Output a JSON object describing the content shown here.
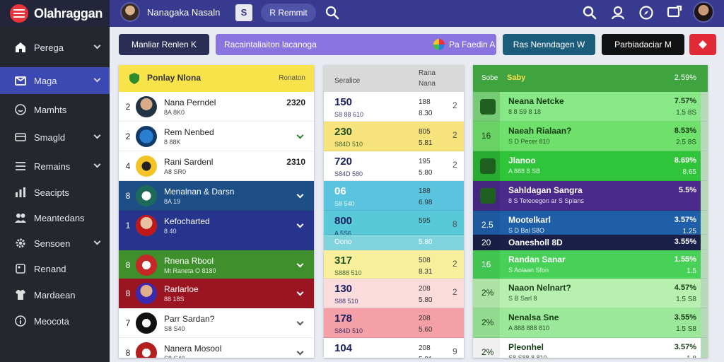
{
  "header": {
    "app_name": "Olahraggan",
    "user_name": "Nanagaka Nasaln",
    "doc_icon_label": "S",
    "pill_label": "R Remmit",
    "colors": {
      "topbar": "#373a8e",
      "brand_bg": "#23253a",
      "accent": "#e8343a"
    },
    "icons": [
      "search-icon",
      "user-icon",
      "compass-icon",
      "screen-icon"
    ]
  },
  "sidebar": {
    "items": [
      {
        "label": "Perega",
        "icon": "home-icon",
        "chevron": true,
        "active": false
      },
      {
        "label": "Maga",
        "icon": "box-icon",
        "chevron": true,
        "active": true
      },
      {
        "label": "Mamhts",
        "icon": "smile-icon",
        "chevron": false,
        "active": false
      },
      {
        "label": "Smagld",
        "icon": "card-icon",
        "chevron": true,
        "active": false
      },
      {
        "label": "Remains",
        "icon": "list-icon",
        "chevron": true,
        "active": false
      },
      {
        "label": "Seacipts",
        "icon": "chart-icon",
        "chevron": false,
        "active": false
      },
      {
        "label": "Meantedans",
        "icon": "people-icon",
        "chevron": false,
        "active": false
      },
      {
        "label": "Sensoen",
        "icon": "gear-icon",
        "chevron": true,
        "active": false
      },
      {
        "label": "Renand",
        "icon": "tag-icon",
        "chevron": false,
        "active": false
      },
      {
        "label": "Mardaean",
        "icon": "shirt-icon",
        "chevron": false,
        "active": false
      },
      {
        "label": "Meocota",
        "icon": "info-icon",
        "chevron": false,
        "active": false
      }
    ]
  },
  "toolbar": {
    "btn1": "Manliar Renlen K",
    "btn2": "Racaintaliaiton lacanoga",
    "btn2_right": "Pa Faedin A",
    "btn3": "Ras Nenndagen W",
    "btn4": "Parbiadaciar M"
  },
  "panel_a": {
    "header_title": "Ponlay Nlona",
    "header_right": "Ronaton",
    "rows": [
      {
        "rank": "2",
        "name": "Nana Perndel",
        "sub": "8A 8K0",
        "value": "2320",
        "chevron": false,
        "bg": "#ffffff",
        "fg": "#222222"
      },
      {
        "rank": "2",
        "name": "Rem Nenbed",
        "sub": "8 88K",
        "value": "",
        "chevron": true,
        "bg": "#ffffff",
        "fg": "#222222"
      },
      {
        "rank": "4",
        "name": "Rani Sardenl",
        "sub": "A8 SR0",
        "value": "2310",
        "chevron": false,
        "bg": "#ffffff",
        "fg": "#222222"
      },
      {
        "rank": "8",
        "name": "Menalnan & Darsn",
        "sub": "8A 19",
        "value": "",
        "chevron": true,
        "bg": "#1d4f86",
        "fg": "#ffffff"
      },
      {
        "rank": "1",
        "name": "Kefocharted",
        "sub": "8 40",
        "value": "",
        "chevron": true,
        "bg": "#27348d",
        "fg": "#ffffff"
      },
      {
        "rank": "8",
        "name": "Rnena Rbool",
        "sub": "Mt Raneta O 8180",
        "value": "",
        "chevron": true,
        "bg": "#3f8f2c",
        "fg": "#ffffff"
      },
      {
        "rank": "8",
        "name": "Rarlarloe",
        "sub": "88 18S",
        "value": "",
        "chevron": true,
        "bg": "#9a1422",
        "fg": "#ffffff"
      },
      {
        "rank": "7",
        "name": "Parr Sardan?",
        "sub": "S8 S40",
        "value": "",
        "chevron": true,
        "bg": "#ffffff",
        "fg": "#222222"
      },
      {
        "rank": "8",
        "name": "Nanera Mosool",
        "sub": "S8 S40",
        "value": "",
        "chevron": true,
        "bg": "#ffffff",
        "fg": "#222222"
      }
    ]
  },
  "panel_b": {
    "header_left": "Seralice",
    "header_right_top": "Rana",
    "header_right_bottom": "Nana",
    "rows": [
      {
        "value": "150",
        "sub": "S8 88 610",
        "n1": "188",
        "n2": "8.30",
        "m": "2",
        "bg": "#ffffff",
        "fg": "#1a1f5e"
      },
      {
        "value": "230",
        "sub": "S84D 510",
        "n1": "805",
        "n2": "5.81",
        "m": "2",
        "bg": "#f6e37c",
        "fg": "#1f4f1f"
      },
      {
        "value": "720",
        "sub": "S84D 580",
        "n1": "195",
        "n2": "5.80",
        "m": "2",
        "bg": "#ffffff",
        "fg": "#1a1f5e"
      },
      {
        "value": "06",
        "sub": "S8 540",
        "n1": "188",
        "n2": "6.98",
        "m": "",
        "bg": "#5ac3de",
        "fg": "#ffffff"
      },
      {
        "value": "800",
        "sub": "A 5S6",
        "n1": "595",
        "n2": "",
        "m": "8",
        "bg": "#58c9d8",
        "fg": "#1a1f5e"
      },
      {
        "value": "Oono",
        "sub": "",
        "n1": "",
        "n2": "5.80",
        "m": "",
        "bg": "#7fd3dc",
        "fg": "#ffffff"
      },
      {
        "value": "317",
        "sub": "S888 510",
        "n1": "508",
        "n2": "8.31",
        "m": "2",
        "bg": "#f7ef9c",
        "fg": "#1f4f1f"
      },
      {
        "value": "130",
        "sub": "S88 510",
        "n1": "208",
        "n2": "5.80",
        "m": "2",
        "bg": "#fbdcdc",
        "fg": "#1a1f5e"
      },
      {
        "value": "178",
        "sub": "S84D 510",
        "n1": "208",
        "n2": "5.60",
        "m": "",
        "bg": "#f59fa6",
        "fg": "#1a1f5e"
      },
      {
        "value": "104",
        "sub": "S84D 510",
        "n1": "208",
        "n2": "5.81",
        "m": "9",
        "bg": "#ffffff",
        "fg": "#1a1f5e"
      }
    ]
  },
  "panel_c": {
    "header_left": "Sobe",
    "header_title": "Saby",
    "header_right": "2.59%",
    "rows": [
      {
        "badge": "",
        "name": "Neana Netcke",
        "sub": "8 8 S9 8 18",
        "pct": "7.57%",
        "n": "1.5 8S",
        "bg": "#88e888",
        "fg": "#143a14"
      },
      {
        "badge": "16",
        "name": "Naeah Rialaan?",
        "sub": "S D Pecer 810",
        "pct": "8.53%",
        "n": "2.5 8S",
        "bg": "#6fe06b",
        "fg": "#143a14"
      },
      {
        "badge": "",
        "name": "Jlanoo",
        "sub": "A 888 8 SB",
        "pct": "8.69%",
        "n": "8.65",
        "bg": "#2fc43a",
        "fg": "#ffffff"
      },
      {
        "badge": "",
        "name": "Sahldagan Sangra",
        "sub": "8 S Teteoegon ar S Splans",
        "pct": "5.5%",
        "n": "",
        "bg": "#4a2a8a",
        "fg": "#ffffff"
      },
      {
        "badge": "2.5",
        "name": "Mootelkarl",
        "sub": "S D Bal S8O",
        "pct": "3.57%",
        "n": "1.25",
        "bg": "#1e5fa8",
        "fg": "#ffffff"
      },
      {
        "badge": "20",
        "name": "Oanesholl 8D",
        "sub": "",
        "pct": "3.55%",
        "n": "",
        "bg": "#1a1f48",
        "fg": "#ffffff"
      },
      {
        "badge": "16",
        "name": "Randan Sanar",
        "sub": "S Aolaan Sfon",
        "pct": "1.55%",
        "n": "1.5",
        "bg": "#47d157",
        "fg": "#ffffff"
      },
      {
        "badge": "2%",
        "name": "Naaon Nelnart?",
        "sub": "S B Sarl 8",
        "pct": "4.57%",
        "n": "1.5 S8",
        "bg": "#b8f0b0",
        "fg": "#143a14"
      },
      {
        "badge": "2%",
        "name": "Nenalsa Sne",
        "sub": "A 888 888 810",
        "pct": "3.55%",
        "n": "1.5 S8",
        "bg": "#9ce89a",
        "fg": "#143a14"
      },
      {
        "badge": "2%",
        "name": "Pleonhel",
        "sub": "S8 S88 8 810",
        "pct": "3.57%",
        "n": "1.8",
        "bg": "#ffffff",
        "fg": "#143a14"
      }
    ]
  }
}
